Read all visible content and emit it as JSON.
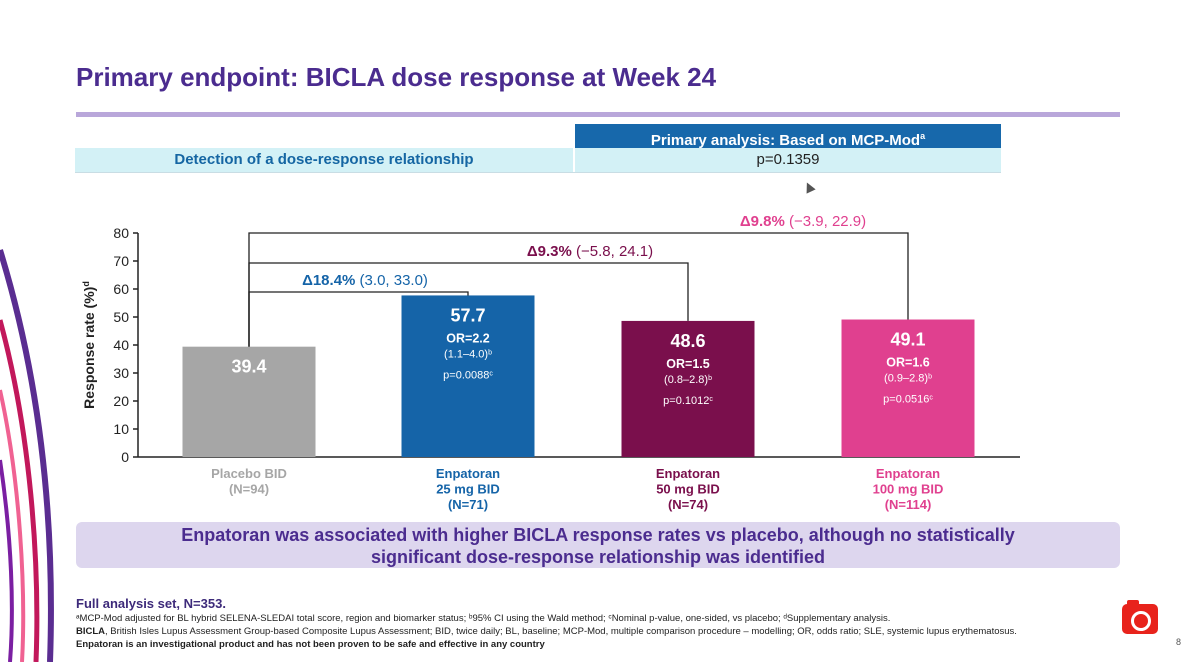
{
  "title": "Primary endpoint: BICLA dose response at Week 24",
  "table": {
    "header": "Primary analysis: Based on MCP-Mod",
    "header_sup": "a",
    "row_label": "Detection of a dose-response relationship",
    "row_value": "p=0.1359"
  },
  "chart_data": {
    "type": "bar",
    "ylabel": "Response rate (%)",
    "ylabel_sup": "d",
    "ylim": [
      0,
      80
    ],
    "yticks": [
      0,
      10,
      20,
      30,
      40,
      50,
      60,
      70,
      80
    ],
    "categories": [
      {
        "name": "Placebo BID",
        "n": "(N=94)"
      },
      {
        "name": "Enpatoran",
        "dose": "25 mg BID",
        "n": "(N=71)"
      },
      {
        "name": "Enpatoran",
        "dose": "50 mg BID",
        "n": "(N=74)"
      },
      {
        "name": "Enpatoran",
        "dose": "100 mg BID",
        "n": "(N=114)"
      }
    ],
    "values": [
      39.4,
      57.7,
      48.6,
      49.1
    ],
    "value_labels": [
      "39.4",
      "57.7",
      "48.6",
      "49.1"
    ],
    "colors": [
      "#a6a6a6",
      "#1564a8",
      "#7a0f4c",
      "#e0408f"
    ],
    "label_colors": [
      "#a6a6a6",
      "#1564a8",
      "#7a0f4c",
      "#e0408f"
    ],
    "odds_ratios": [
      null,
      {
        "or": "OR=2.2",
        "ci": "(1.1–4.0)",
        "p": "p=0.0088"
      },
      {
        "or": "OR=1.5",
        "ci": "(0.8–2.8)",
        "p": "p=0.1012"
      },
      {
        "or": "OR=1.6",
        "ci": "(0.9–2.8)",
        "p": "p=0.0516"
      }
    ],
    "deltas": [
      {
        "to": 1,
        "label": "Δ18.4%",
        "ci": "(3.0, 33.0)",
        "color": "#1564a8"
      },
      {
        "to": 2,
        "label": "Δ9.3%",
        "ci": "(−5.8, 24.1)",
        "color": "#7a0f4c"
      },
      {
        "to": 3,
        "label": "Δ9.8%",
        "ci": "(−3.9, 22.9)",
        "color": "#e0408f"
      }
    ]
  },
  "banner": {
    "line1": "Enpatoran was associated with higher BICLA response rates vs placebo, although no statistically",
    "line2": "significant dose-response relationship was identified"
  },
  "footer": {
    "fas": "Full analysis set, N=353.",
    "fn1": "ᵃMCP-Mod adjusted for BL hybrid SELENA-SLEDAI total score, region and biomarker status; ᵇ95% CI using the Wald method; ᶜNominal p-value, one-sided, vs placebo; ᵈSupplementary analysis.",
    "fn2_bicla": "BICLA",
    "fn2_rest": ", British Isles Lupus Assessment Group-based Composite Lupus Assessment; BID, twice daily; BL, baseline; MCP-Mod, multiple comparison procedure – modelling; OR, odds ratio; SLE, systemic lupus erythematosus.",
    "fn3": "Enpatoran is an investigational product and has not been proven to be safe and effective in any country",
    "page": "8"
  }
}
